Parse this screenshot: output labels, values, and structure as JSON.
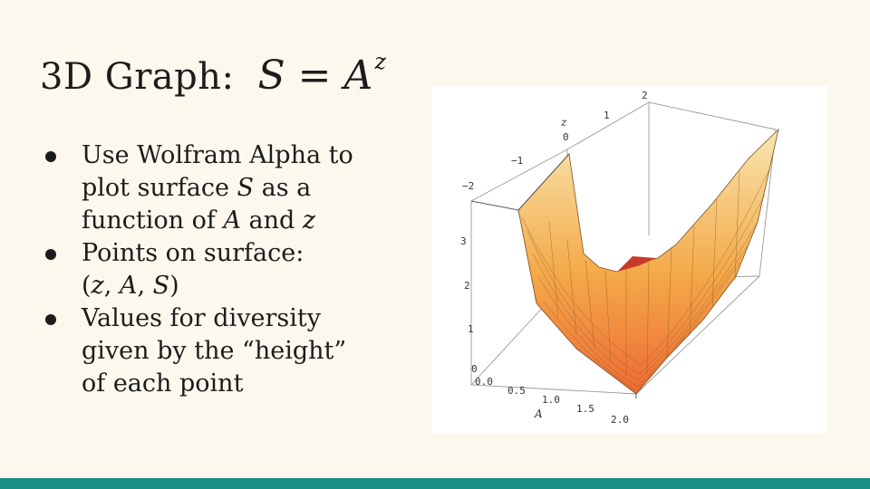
{
  "title": {
    "text": "3D Graph:",
    "formula": {
      "lhs": "S",
      "op": "=",
      "base": "A",
      "exponent": "z"
    }
  },
  "bullets": [
    {
      "parts": [
        "Use Wolfram Alpha to",
        "plot surface ",
        "S",
        " as a",
        "function of ",
        "A",
        " and ",
        "z"
      ]
    },
    {
      "parts": [
        "Points on surface:",
        "(",
        "z",
        ", ",
        "A",
        ", ",
        "S",
        ")"
      ]
    },
    {
      "parts": [
        "Values for diversity",
        "given by the “height”",
        "of each point"
      ]
    }
  ],
  "figure": {
    "z_axis_name": "z",
    "z_ticks": [
      "2",
      "1",
      "0",
      "−1",
      "−2"
    ],
    "s_ticks": [
      "3",
      "2",
      "1",
      "0"
    ],
    "a_axis_name": "A",
    "a_ticks": [
      "0.0",
      "0.5",
      "1.0",
      "1.5",
      "2.0"
    ]
  },
  "colors": {
    "background": "#fdf8ee",
    "accent_bar": "#1a8f86",
    "surface_low": "#f07a3c",
    "surface_high": "#f7e2a8"
  }
}
